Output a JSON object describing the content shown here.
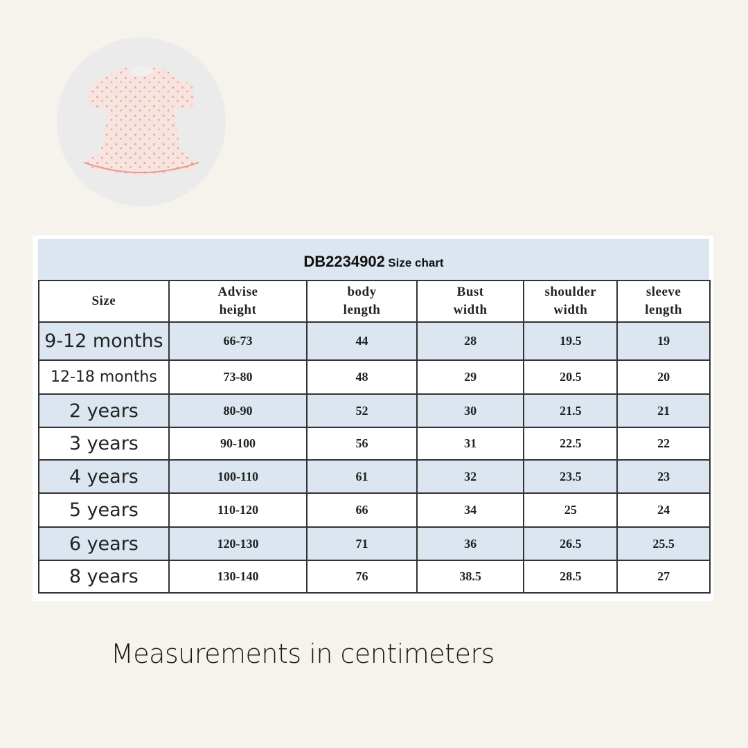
{
  "product_image": {
    "alt": "pink floral tulle dress"
  },
  "chart": {
    "code": "DB2234902",
    "subtitle": "Size chart",
    "headers": [
      [
        "Size",
        ""
      ],
      [
        "Advise",
        "height"
      ],
      [
        "body",
        "length"
      ],
      [
        "Bust",
        "width"
      ],
      [
        "shoulder",
        "width"
      ],
      [
        "sleeve",
        "length"
      ]
    ],
    "rows": [
      [
        "9-12 months",
        "66-73",
        "44",
        "28",
        "19.5",
        "19"
      ],
      [
        "12-18 months",
        "73-80",
        "48",
        "29",
        "20.5",
        "20"
      ],
      [
        "2 years",
        "80-90",
        "52",
        "30",
        "21.5",
        "21"
      ],
      [
        "3 years",
        "90-100",
        "56",
        "31",
        "22.5",
        "22"
      ],
      [
        "4 years",
        "100-110",
        "61",
        "32",
        "23.5",
        "23"
      ],
      [
        "5 years",
        "110-120",
        "66",
        "34",
        "25",
        "24"
      ],
      [
        "6 years",
        "120-130",
        "71",
        "36",
        "26.5",
        "25.5"
      ],
      [
        "8 years",
        "130-140",
        "76",
        "38.5",
        "28.5",
        "27"
      ]
    ]
  },
  "note": "Measurements in centimeters",
  "colors": {
    "band": "#dce6f1",
    "background": "#f6f3ec"
  }
}
